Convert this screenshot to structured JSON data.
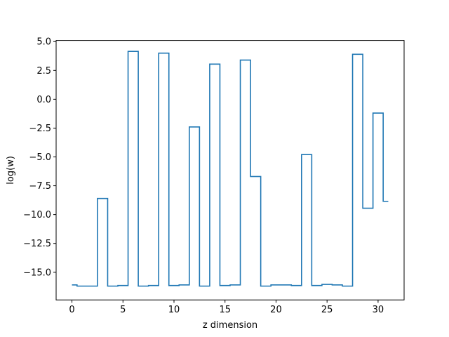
{
  "chart_data": {
    "type": "line",
    "step": "mid",
    "title": "",
    "xlabel": "z dimension",
    "ylabel": "log(w)",
    "xlim": [
      -1.55,
      32.55
    ],
    "ylim": [
      -17.4,
      5.1
    ],
    "grid": false,
    "series": [
      {
        "color": "#1f77b4",
        "x": [
          0,
          1,
          2,
          3,
          4,
          5,
          6,
          7,
          8,
          9,
          10,
          11,
          12,
          13,
          14,
          15,
          16,
          17,
          18,
          19,
          20,
          21,
          22,
          23,
          24,
          25,
          26,
          27,
          28,
          29,
          30,
          31
        ],
        "y": [
          -16.1,
          -16.2,
          -16.2,
          -8.6,
          -16.2,
          -16.15,
          4.15,
          -16.2,
          -16.15,
          4.0,
          -16.15,
          -16.1,
          -2.4,
          -16.2,
          3.05,
          -16.15,
          -16.1,
          3.4,
          -6.7,
          -16.2,
          -16.1,
          -16.1,
          -16.15,
          -4.8,
          -16.15,
          -16.05,
          -16.1,
          -16.2,
          3.9,
          -9.45,
          -1.2,
          -8.85
        ]
      }
    ],
    "x_ticks": [
      0,
      5,
      10,
      15,
      20,
      25,
      30
    ],
    "x_tick_labels": [
      "0",
      "5",
      "10",
      "15",
      "20",
      "25",
      "30"
    ],
    "y_ticks": [
      5.0,
      2.5,
      0.0,
      -2.5,
      -5.0,
      -7.5,
      -10.0,
      -12.5,
      -15.0
    ],
    "y_tick_labels": [
      "5.0",
      "2.5",
      "0.0",
      "−2.5",
      "−5.0",
      "−7.5",
      "−10.0",
      "−12.5",
      "−15.0"
    ]
  }
}
